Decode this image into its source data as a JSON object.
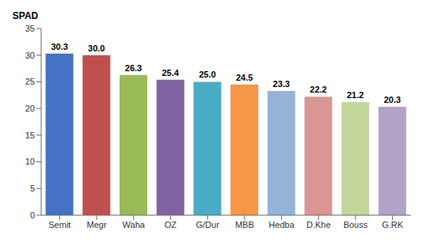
{
  "chart_data": {
    "type": "bar",
    "ylabel": "SPAD",
    "categories": [
      "Semit",
      "Megr",
      "Waha",
      "OZ",
      "G/Dur",
      "MBB",
      "Hedba",
      "D.Khe",
      "Bouss",
      "G.RK"
    ],
    "values": [
      30.3,
      30.0,
      26.3,
      25.4,
      25.0,
      24.5,
      23.3,
      22.2,
      21.2,
      20.3
    ],
    "value_labels": [
      "30.3",
      "30.0",
      "26.3",
      "25.4",
      "25.0",
      "24.5",
      "23.3",
      "22.2",
      "21.2",
      "20.3"
    ],
    "colors": [
      "#4472C4",
      "#C0504D",
      "#9BBB59",
      "#8064A2",
      "#4BACC6",
      "#F79646",
      "#95B3D7",
      "#D99694",
      "#C3D69B",
      "#B2A2C7"
    ],
    "ylim": [
      0,
      35
    ],
    "yticks": [
      0,
      5,
      10,
      15,
      20,
      25,
      30,
      35
    ],
    "grid": false,
    "data_labels": true
  }
}
